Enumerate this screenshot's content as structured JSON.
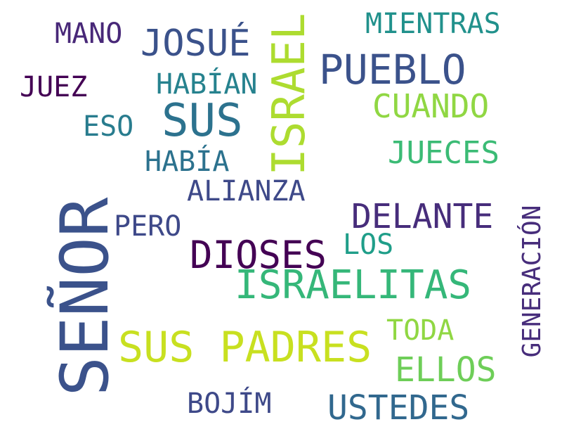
{
  "words": {
    "senor": {
      "text": "SEÑOR",
      "color": "#3b528b"
    },
    "sus_padres": {
      "text": "SUS PADRES",
      "color": "#c8e020"
    },
    "israel": {
      "text": "ISRAEL",
      "color": "#addc30"
    },
    "dioses": {
      "text": "DIOSES",
      "color": "#440154"
    },
    "pueblo": {
      "text": "PUEBLO",
      "color": "#3b528b"
    },
    "sus": {
      "text": "SUS",
      "color": "#2c728e"
    },
    "israelitas": {
      "text": "ISRAELITAS",
      "color": "#35b779"
    },
    "josue": {
      "text": "JOSUÉ",
      "color": "#3b528b"
    },
    "delante": {
      "text": "DELANTE",
      "color": "#472d7b"
    },
    "ustedes": {
      "text": "USTEDES",
      "color": "#31688e"
    },
    "cuando": {
      "text": "CUANDO",
      "color": "#90d743"
    },
    "jueces": {
      "text": "JUECES",
      "color": "#3bbb75"
    },
    "ellos": {
      "text": "ELLOS",
      "color": "#6ece58"
    },
    "generacion": {
      "text": "GENERACIÓN",
      "color": "#472d7b"
    },
    "mientras": {
      "text": "MIENTRAS",
      "color": "#21918c"
    },
    "alianza": {
      "text": "ALIANZA",
      "color": "#3e4989"
    },
    "habian": {
      "text": "HABÍAN",
      "color": "#26828e"
    },
    "habia": {
      "text": "HABÍA",
      "color": "#2c728e"
    },
    "bojim": {
      "text": "BOJÍM",
      "color": "#3e4989"
    },
    "toda": {
      "text": "TODA",
      "color": "#90d743"
    },
    "los": {
      "text": "LOS",
      "color": "#1f9e89"
    },
    "pero": {
      "text": "PERO",
      "color": "#3e4989"
    },
    "mano": {
      "text": "MANO",
      "color": "#482878"
    },
    "juez": {
      "text": "JUEZ",
      "color": "#440154"
    },
    "eso": {
      "text": "ESO",
      "color": "#287c8e"
    }
  }
}
